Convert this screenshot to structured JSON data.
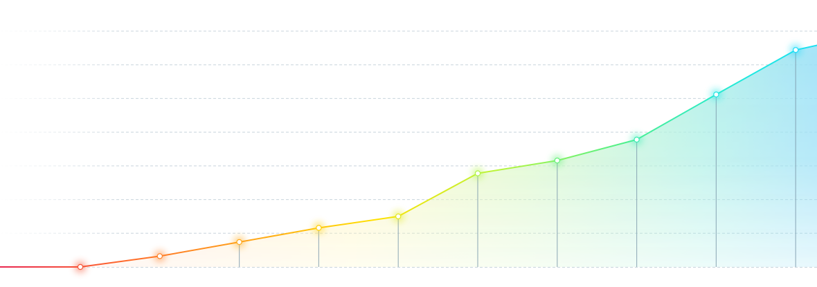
{
  "chart_data": {
    "type": "area",
    "title": "",
    "xlabel": "",
    "ylabel": "",
    "x": [
      0,
      1,
      2,
      3,
      4,
      5,
      6,
      7,
      8,
      9,
      10
    ],
    "series": [
      {
        "values": [
          0,
          16,
          37,
          58,
          75,
          139,
          158,
          189,
          256,
          322,
          348
        ]
      }
    ],
    "ylim": [
      0,
      350
    ],
    "grid": true,
    "legend": "none",
    "gradient_colors": [
      "#e8264f",
      "#ff6a2b",
      "#ffa51a",
      "#ffe000",
      "#b8f53c",
      "#4ef08c",
      "#1ee8e0",
      "#18d8ff"
    ],
    "area_colors": [
      "#ffd6d6",
      "#ffe3c9",
      "#fff6bd",
      "#d9f7c8",
      "#aef0e6",
      "#8fd8ff"
    ],
    "drop_line_color": "#7f9cad"
  }
}
